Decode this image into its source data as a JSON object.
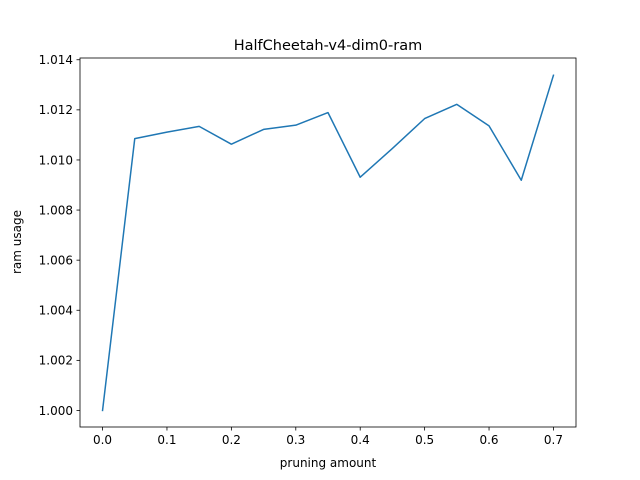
{
  "chart_data": {
    "type": "line",
    "title": "HalfCheetah-v4-dim0-ram",
    "xlabel": "pruning amount",
    "ylabel": "ram usage",
    "xlim": [
      -0.035,
      0.735
    ],
    "ylim": [
      0.99934,
      1.01407
    ],
    "xticks": [
      0.0,
      0.1,
      0.2,
      0.3,
      0.4,
      0.5,
      0.6,
      0.7
    ],
    "xtick_labels": [
      "0.0",
      "0.1",
      "0.2",
      "0.3",
      "0.4",
      "0.5",
      "0.6",
      "0.7"
    ],
    "yticks": [
      1.0,
      1.002,
      1.004,
      1.006,
      1.008,
      1.01,
      1.012,
      1.014
    ],
    "ytick_labels": [
      "1.000",
      "1.002",
      "1.004",
      "1.006",
      "1.008",
      "1.010",
      "1.012",
      "1.014"
    ],
    "grid": false,
    "series": [
      {
        "color": "#1f77b4",
        "x": [
          0.0,
          0.05,
          0.1,
          0.15,
          0.2,
          0.25,
          0.3,
          0.35,
          0.4,
          0.45,
          0.5,
          0.55,
          0.6,
          0.65,
          0.7
        ],
        "y": [
          1.0,
          1.01085,
          1.01111,
          1.01134,
          1.01063,
          1.01122,
          1.01139,
          1.01189,
          1.00931,
          1.01046,
          1.01165,
          1.01222,
          1.01136,
          1.00919,
          1.01338
        ]
      }
    ]
  }
}
